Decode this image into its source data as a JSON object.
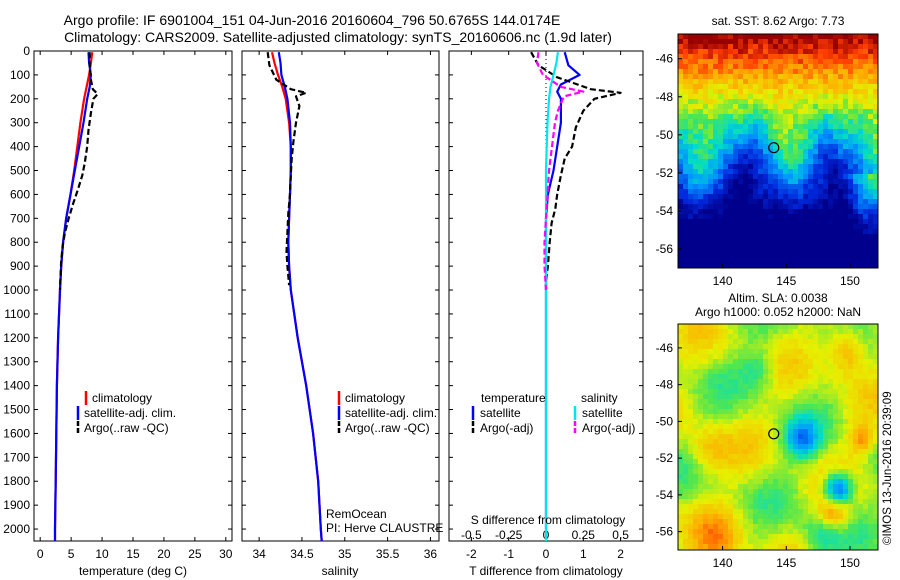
{
  "figure": {
    "title_line1": "Argo profile: IF 6901004_151 04-Jun-2016 20160604_796 50.6765S 144.0174E",
    "title_line2": "Climatology: CARS2009. Satellite-adjusted climatology: synTS_20160606.nc (1.9d later)",
    "credit": "©IMOS 13-Jun-2016 20:39:09",
    "remocean": "RemOcean",
    "pi": "PI: Herve CLAUSTRE"
  },
  "colors": {
    "climatology": "#ff0000",
    "satellite": "#0000ff",
    "argo": "#000000",
    "sat_salinity": "#00e5ee",
    "argo_salinity": "#ff00ff"
  },
  "chart_data": [
    {
      "type": "line",
      "id": "temperature",
      "xlabel": "temperature (deg C)",
      "xlim": [
        -1,
        31
      ],
      "xticks": [
        0,
        5,
        10,
        15,
        20,
        25,
        30
      ],
      "ylim": [
        2050,
        0
      ],
      "yticks": [
        0,
        100,
        200,
        300,
        400,
        500,
        600,
        700,
        800,
        900,
        1000,
        1100,
        1200,
        1300,
        1400,
        1500,
        1600,
        1700,
        1800,
        1900,
        2000
      ],
      "legend": [
        "climatology",
        "satellite-adj. clim.",
        "Argo(..raw -QC)"
      ],
      "series": [
        {
          "name": "climatology",
          "color": "#ff0000",
          "depth": [
            5,
            50,
            100,
            150,
            200,
            300,
            400,
            500,
            600,
            700,
            800,
            900,
            1000,
            1200,
            1400,
            1600,
            1800,
            2000,
            2050
          ],
          "values": [
            8.4,
            8.2,
            7.9,
            7.5,
            7.1,
            6.5,
            6.0,
            5.5,
            4.9,
            4.2,
            3.7,
            3.4,
            3.2,
            2.9,
            2.7,
            2.6,
            2.5,
            2.4,
            2.4
          ]
        },
        {
          "name": "satellite-adj. clim.",
          "color": "#0000ff",
          "depth": [
            5,
            50,
            100,
            150,
            200,
            300,
            400,
            500,
            600,
            700,
            800,
            900,
            1000,
            1200,
            1400,
            1600,
            1800,
            2000,
            2050
          ],
          "values": [
            7.8,
            7.9,
            8.2,
            8.0,
            7.6,
            7.0,
            6.3,
            5.6,
            4.9,
            4.2,
            3.7,
            3.4,
            3.2,
            2.9,
            2.7,
            2.6,
            2.5,
            2.4,
            2.4
          ]
        },
        {
          "name": "Argo(..raw -QC)",
          "color": "#000000",
          "dashed": true,
          "depth": [
            5,
            60,
            120,
            160,
            180,
            200,
            260,
            330,
            400,
            470,
            520,
            580,
            640,
            700,
            760,
            820,
            880,
            940,
            1000
          ],
          "values": [
            8.0,
            8.0,
            8.2,
            8.5,
            9.3,
            8.6,
            8.2,
            7.8,
            7.6,
            7.2,
            6.8,
            6.1,
            5.3,
            4.6,
            4.0,
            3.6,
            3.4,
            3.3,
            3.2
          ]
        }
      ]
    },
    {
      "type": "line",
      "id": "salinity",
      "xlabel": "salinity",
      "xlim": [
        33.8,
        36.1
      ],
      "xticks": [
        34,
        34.5,
        35,
        35.5,
        36
      ],
      "xticklabels": [
        "34",
        "34.5",
        "35",
        "35.5",
        "36"
      ],
      "ylim": [
        2050,
        0
      ],
      "legend": [
        "climatology",
        "satellite-adj. clim.",
        "Argo(..raw -QC)"
      ],
      "series": [
        {
          "name": "climatology",
          "color": "#ff0000",
          "depth": [
            5,
            50,
            100,
            150,
            200,
            300,
            400,
            500,
            600,
            700,
            800,
            900,
            1000,
            1200,
            1400,
            1600,
            1800,
            2000,
            2050
          ],
          "values": [
            34.15,
            34.18,
            34.22,
            34.27,
            34.31,
            34.35,
            34.37,
            34.37,
            34.36,
            34.35,
            34.34,
            34.35,
            34.37,
            34.45,
            34.55,
            34.63,
            34.69,
            34.72,
            34.73
          ]
        },
        {
          "name": "satellite-adj. clim.",
          "color": "#0000ff",
          "depth": [
            5,
            50,
            100,
            150,
            200,
            300,
            400,
            500,
            600,
            700,
            800,
            900,
            1000,
            1200,
            1400,
            1600,
            1800,
            2000,
            2050
          ],
          "values": [
            34.23,
            34.25,
            34.26,
            34.3,
            34.33,
            34.36,
            34.37,
            34.37,
            34.36,
            34.35,
            34.34,
            34.35,
            34.37,
            34.45,
            34.55,
            34.63,
            34.69,
            34.72,
            34.73
          ]
        },
        {
          "name": "Argo(..raw -QC)",
          "color": "#000000",
          "dashed": true,
          "depth": [
            5,
            60,
            120,
            160,
            175,
            190,
            230,
            300,
            380,
            450,
            520,
            600,
            680,
            760,
            840,
            900,
            940,
            980
          ],
          "values": [
            34.1,
            34.12,
            34.2,
            34.37,
            34.55,
            34.43,
            34.47,
            34.43,
            34.4,
            34.38,
            34.37,
            34.36,
            34.34,
            34.33,
            34.32,
            34.33,
            34.34,
            34.35
          ]
        }
      ]
    },
    {
      "type": "line",
      "id": "difference",
      "xlabel": "T difference from climatology",
      "xlabel2": "S difference from climatology",
      "xlim": [
        -2.6,
        2.6
      ],
      "xticks": [
        -2,
        -1,
        0,
        1,
        2
      ],
      "top_ticks": [
        -0.5,
        -0.25,
        0,
        0.25,
        0.5
      ],
      "top_ticklabels": [
        "-0.5",
        "-0.25",
        "0",
        "0.25",
        "0.5"
      ],
      "ylim": [
        2050,
        0
      ],
      "legend_t_title": "temperature",
      "legend_s_title": "salinity",
      "legend_items": [
        "satellite",
        "Argo(-adj)",
        "satellite",
        "Argo(-adj)"
      ],
      "series": [
        {
          "name": "T satellite",
          "color": "#0000ff",
          "depth": [
            5,
            60,
            100,
            140,
            170,
            200,
            300,
            400,
            500,
            600,
            700,
            800,
            900,
            1000,
            1200,
            1600,
            2000
          ],
          "values": [
            0.5,
            0.6,
            0.9,
            0.4,
            0.3,
            0.4,
            0.4,
            0.3,
            0.2,
            0.05,
            0,
            0,
            0,
            0,
            0,
            0,
            0
          ]
        },
        {
          "name": "T Argo(-adj)",
          "color": "#000000",
          "dashed": true,
          "depth": [
            5,
            60,
            110,
            160,
            175,
            200,
            250,
            320,
            400,
            450,
            520,
            600,
            660,
            720,
            800,
            900,
            960,
            1000
          ],
          "values": [
            -0.4,
            -0.2,
            0.3,
            1.2,
            2.0,
            1.3,
            1.0,
            0.8,
            0.7,
            0.5,
            0.4,
            0.3,
            0.25,
            0.15,
            0.1,
            0.05,
            0,
            0
          ]
        },
        {
          "name": "S satellite",
          "color": "#00e5ee",
          "depth": [
            5,
            50,
            100,
            150,
            200,
            300,
            400,
            500,
            700,
            900,
            1200,
            1600,
            2000,
            2050
          ],
          "values": [
            0.08,
            0.07,
            0.05,
            0.03,
            0.02,
            0.01,
            0.005,
            0,
            0,
            0,
            0,
            0,
            0,
            0
          ]
        },
        {
          "name": "S Argo(-adj)",
          "color": "#ff00ff",
          "dashed": true,
          "depth": [
            5,
            50,
            100,
            150,
            170,
            190,
            250,
            300,
            400,
            500,
            600,
            700,
            800,
            900,
            1000
          ],
          "values": [
            -0.05,
            -0.06,
            -0.02,
            0.1,
            0.25,
            0.12,
            0.08,
            0.06,
            0.04,
            0.02,
            0.01,
            0.0,
            -0.01,
            -0.01,
            0.0
          ]
        }
      ]
    },
    {
      "type": "heatmap",
      "id": "sst-map",
      "title": "sat. SST: 8.62 Argo: 7.73",
      "xticks": [
        140,
        145,
        150
      ],
      "yticks": [
        -46,
        -48,
        -50,
        -52,
        -54,
        -56
      ],
      "xlim": [
        136.5,
        152.2
      ],
      "ylim": [
        -57,
        -44.7
      ],
      "argo_position": [
        144.0174,
        -50.6765
      ]
    },
    {
      "type": "heatmap",
      "id": "sla-map",
      "title_line1": "Altim. SLA: 0.0038",
      "title_line2": "Argo h1000: 0.052 h2000: NaN",
      "xticks": [
        140,
        145,
        150
      ],
      "yticks": [
        -46,
        -48,
        -50,
        -52,
        -54,
        -56
      ],
      "xlim": [
        136.5,
        152.2
      ],
      "ylim": [
        -57,
        -44.7
      ],
      "argo_position": [
        144.0174,
        -50.6765
      ]
    }
  ]
}
